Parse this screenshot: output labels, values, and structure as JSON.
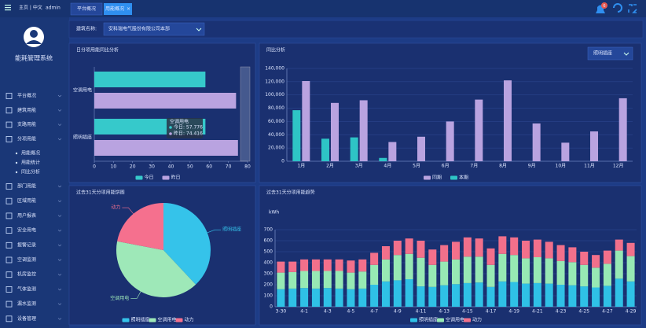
{
  "header": {
    "nav": "主页 | 中文",
    "user": "admin",
    "badge": 6
  },
  "sidebar": {
    "title": "能耗管理系统",
    "menu": [
      "平台概况",
      "建筑用能",
      "支路用能",
      "分项用能",
      "部门用能",
      "区域用能",
      "用户报表",
      "安全用电",
      "报警记录",
      "空调监测",
      "机房监控",
      "气体监测",
      "漏水监测",
      "设备管理"
    ],
    "submenu": [
      "用能概况",
      "用能统计",
      "同比分析"
    ]
  },
  "tabs": [
    "平台概况",
    "用能概况"
  ],
  "filter": {
    "label": "建筑名称:",
    "value": "安科瑞电气股份有限公司本部"
  },
  "chart_data": [
    {
      "type": "hbar",
      "title": "日分项用能同比分析",
      "categories": [
        "空调用电",
        "照明插座"
      ],
      "series": [
        {
          "name": "今日",
          "color": "#36c9cb",
          "values": [
            58,
            58
          ]
        },
        {
          "name": "昨日",
          "color": "#b9a3e0",
          "values": [
            74,
            75
          ]
        }
      ],
      "xlim": [
        0,
        80
      ],
      "xticks": [
        0,
        10,
        20,
        30,
        40,
        50,
        60,
        70,
        80
      ],
      "tooltip": {
        "title": "空调用电",
        "lines": [
          "今日: 57.776",
          "昨日: 74.416"
        ]
      }
    },
    {
      "type": "bar",
      "title": "同比分析",
      "dropdown": "照明插座",
      "categories": [
        "1月",
        "2月",
        "3月",
        "4月",
        "5月",
        "6月",
        "7月",
        "8月",
        "9月",
        "10月",
        "11月",
        "12月"
      ],
      "series": [
        {
          "name": "同期",
          "color": "#b9a3e0",
          "values": [
            121000,
            88000,
            92000,
            29000,
            37000,
            60000,
            93000,
            122000,
            57000,
            28000,
            45000,
            95000
          ]
        },
        {
          "name": "本期",
          "color": "#2ec4c6",
          "values": [
            77000,
            34000,
            36000,
            5000,
            null,
            null,
            null,
            null,
            null,
            null,
            null,
            null
          ]
        }
      ],
      "ylim": [
        0,
        140000
      ],
      "yticks": [
        0,
        {
          "value": 20000,
          "label": "20,000"
        },
        {
          "value": 40000,
          "label": "40,000"
        },
        {
          "value": 60000,
          "label": "60,000"
        },
        {
          "value": 80000,
          "label": "80,000"
        },
        {
          "value": 100000,
          "label": "100,000"
        },
        {
          "value": 120000,
          "label": "120,000"
        },
        {
          "value": 140000,
          "label": "140,000"
        }
      ],
      "grid": true
    },
    {
      "type": "pie",
      "title": "过去31天分项用能饼图",
      "categories": [
        "照明插座",
        "空调用电",
        "动力"
      ],
      "values": [
        38,
        40,
        22
      ],
      "colors": [
        "#35c3ea",
        "#9ee8b8",
        "#f5708e"
      ]
    },
    {
      "type": "stacked",
      "title": "过去31天分项用能趋势",
      "ylabel": "kWh",
      "categories": [
        "3-30",
        null,
        "4-1",
        null,
        "4-3",
        null,
        "4-5",
        null,
        "4-7",
        null,
        "4-9",
        null,
        "4-11",
        null,
        "4-13",
        null,
        "4-15",
        null,
        "4-17",
        null,
        "4-19",
        null,
        "4-21",
        null,
        "4-23",
        null,
        "4-25",
        null,
        "4-27",
        null,
        "4-29"
      ],
      "series": [
        {
          "name": "照明插座",
          "color": "#2fc1e6",
          "values": [
            160,
            165,
            170,
            165,
            170,
            165,
            160,
            165,
            200,
            230,
            240,
            250,
            185,
            180,
            195,
            205,
            215,
            220,
            180,
            230,
            225,
            210,
            215,
            210,
            200,
            195,
            185,
            175,
            190,
            255,
            230
          ]
        },
        {
          "name": "空调用电",
          "color": "#97e9b4",
          "values": [
            150,
            150,
            155,
            160,
            155,
            160,
            150,
            155,
            180,
            200,
            230,
            230,
            260,
            200,
            215,
            225,
            240,
            235,
            200,
            250,
            245,
            230,
            235,
            230,
            215,
            210,
            195,
            180,
            200,
            255,
            230
          ]
        },
        {
          "name": "动力",
          "color": "#f2708b",
          "values": [
            100,
            95,
            105,
            105,
            105,
            105,
            110,
            110,
            110,
            120,
            130,
            140,
            155,
            140,
            150,
            160,
            175,
            165,
            150,
            160,
            160,
            160,
            160,
            150,
            145,
            135,
            120,
            115,
            120,
            100,
            120
          ]
        }
      ],
      "ylim": [
        0,
        700
      ],
      "yticks": [
        0,
        100,
        200,
        300,
        400,
        500,
        600,
        700
      ],
      "grid": true
    }
  ]
}
